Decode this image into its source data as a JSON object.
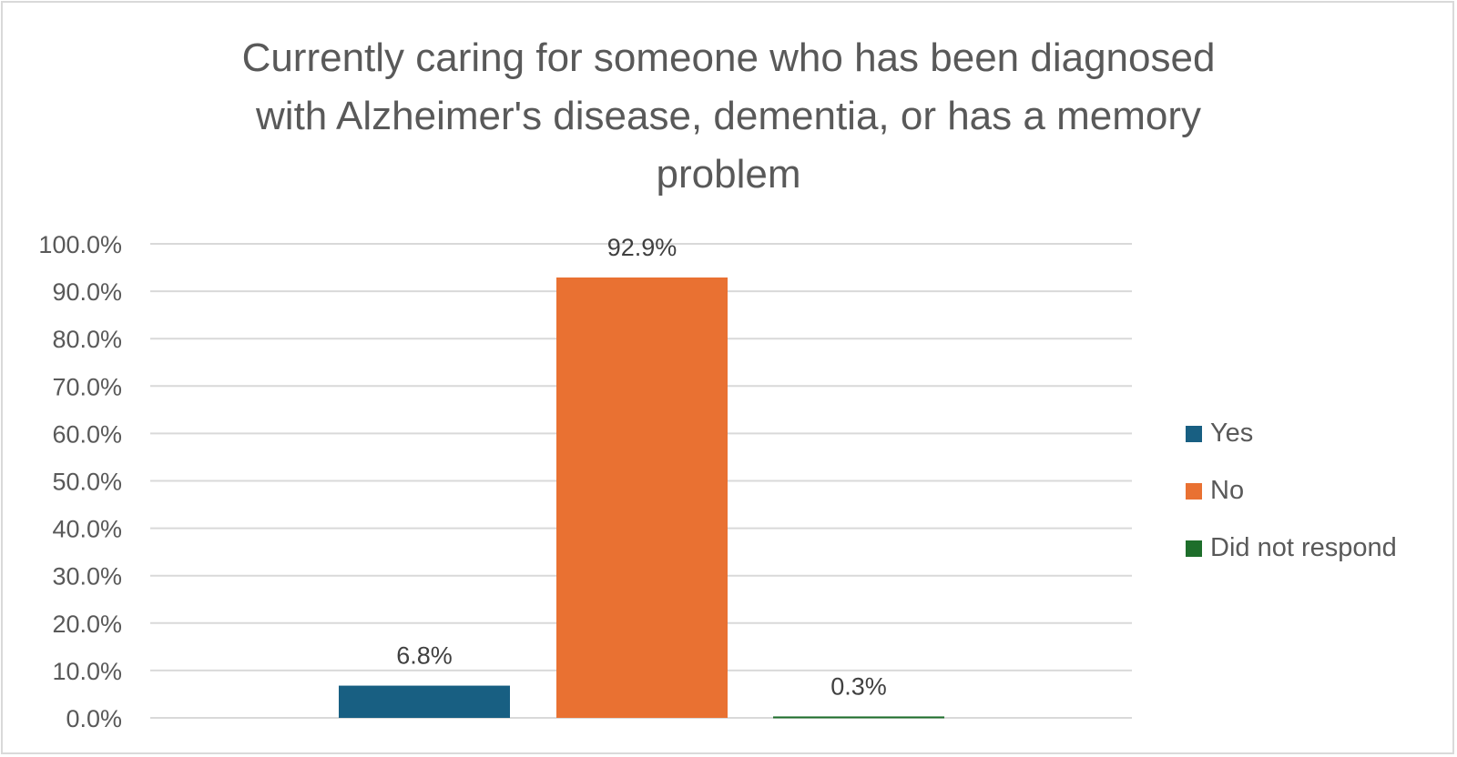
{
  "chart_data": {
    "type": "bar",
    "title_lines": [
      "Currently caring for someone who has been diagnosed",
      "with Alzheimer's disease, dementia, or has a memory",
      "problem"
    ],
    "categories": [
      "Yes",
      "No",
      "Did not respond"
    ],
    "values": [
      6.8,
      92.9,
      0.3
    ],
    "data_labels": [
      "6.8%",
      "92.9%",
      "0.3%"
    ],
    "colors": [
      "#185f82",
      "#e97132",
      "#1e6e2b"
    ],
    "ylim": [
      0,
      100
    ],
    "yticks": [
      0,
      10,
      20,
      30,
      40,
      50,
      60,
      70,
      80,
      90,
      100
    ],
    "ytick_labels": [
      "0.0%",
      "10.0%",
      "20.0%",
      "30.0%",
      "40.0%",
      "50.0%",
      "60.0%",
      "70.0%",
      "80.0%",
      "90.0%",
      "100.0%"
    ],
    "grid": true,
    "legend": {
      "placement": "right",
      "entries": [
        "Yes",
        "No",
        "Did not respond"
      ]
    },
    "xlabel": "",
    "ylabel": ""
  }
}
